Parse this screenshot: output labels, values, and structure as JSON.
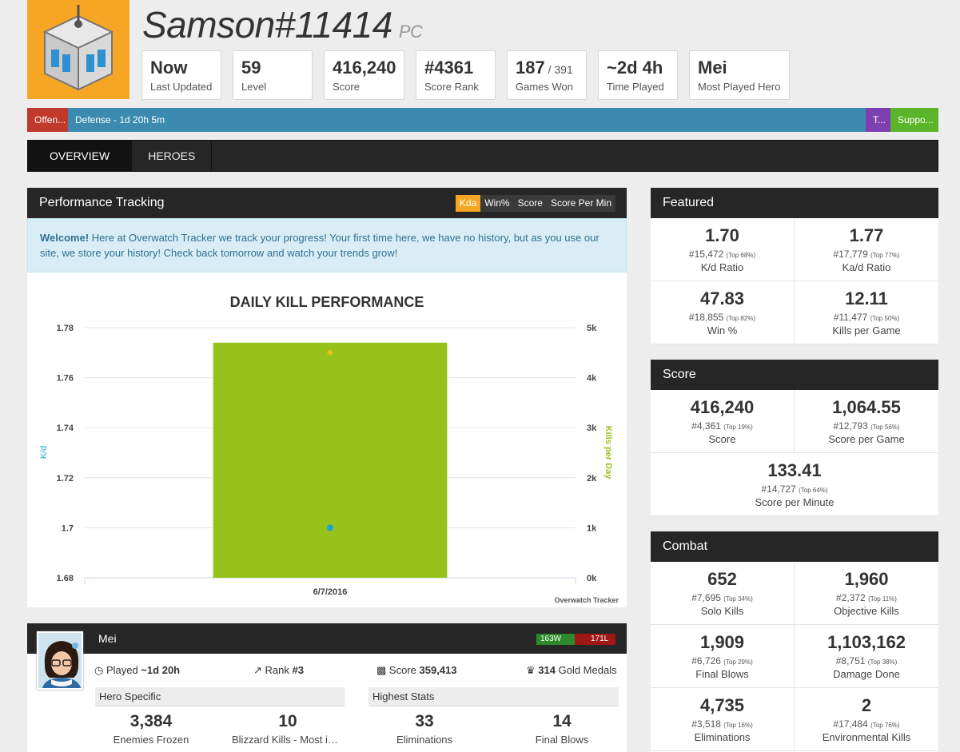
{
  "colors": {
    "accent": "#f6a623",
    "offense": "#c0392b",
    "defense": "#3c8ab0",
    "tank": "#7e3fb0",
    "support": "#5ab52a",
    "chart_bar": "#97c21b",
    "kd_line": "#1fa3d5",
    "win": "#2c8a2c",
    "loss": "#a01717"
  },
  "player": {
    "name": "Samson#11414",
    "platform": "PC",
    "avatar_icon": "loot-box-icon"
  },
  "summary": [
    {
      "value": "Now",
      "suffix": "",
      "label": "Last Updated"
    },
    {
      "value": "59",
      "suffix": "",
      "label": "Level"
    },
    {
      "value": "416,240",
      "suffix": "",
      "label": "Score"
    },
    {
      "value": "#4361",
      "suffix": "",
      "label": "Score Rank"
    },
    {
      "value": "187",
      "suffix": " / 391",
      "label": "Games Won"
    },
    {
      "value": "~2d 4h",
      "suffix": "",
      "label": "Time Played"
    },
    {
      "value": "Mei",
      "suffix": "",
      "label": "Most Played Hero"
    }
  ],
  "roles": [
    {
      "label": "Offen...",
      "share": 0.045,
      "color": "#c0392b"
    },
    {
      "label": "Defense - 1d 20h 5m",
      "share": 0.876,
      "color": "#3c8ab0"
    },
    {
      "label": "T...",
      "share": 0.027,
      "color": "#7e3fb0"
    },
    {
      "label": "Suppo...",
      "share": 0.052,
      "color": "#5ab52a"
    }
  ],
  "tabs": [
    {
      "label": "Overview",
      "active": true
    },
    {
      "label": "Heroes",
      "active": false
    }
  ],
  "performance": {
    "title": "Performance Tracking",
    "buttons": [
      {
        "label": "Kda",
        "active": true
      },
      {
        "label": "Win%",
        "active": false
      },
      {
        "label": "Score",
        "active": false
      },
      {
        "label": "Score Per Min",
        "active": false
      }
    ],
    "alert_strong": "Welcome!",
    "alert_text": " Here at Overwatch Tracker we track your progress! Your first time here, we have no history, but as you use our site, we store your history! Check back tomorrow and watch your trends grow!"
  },
  "chart_data": {
    "type": "bar",
    "title": "DAILY KILL PERFORMANCE",
    "categories": [
      "6/7/2016"
    ],
    "series": [
      {
        "name": "Kills per Day",
        "type": "bar",
        "axis": "right",
        "values": [
          4.7
        ]
      },
      {
        "name": "K/d",
        "type": "line",
        "axis": "left",
        "values": [
          1.7
        ]
      },
      {
        "name": "",
        "type": "point",
        "axis": "right",
        "values": [
          4.5
        ]
      }
    ],
    "ylabel": "K/d",
    "ylabel_right": "Kills per Day",
    "ylim": [
      1.68,
      1.78
    ],
    "yticks": [
      "1.78",
      "1.76",
      "1.74",
      "1.72",
      "1.7",
      "1.68"
    ],
    "ylim_right": [
      0,
      5
    ],
    "yticks_right": [
      "5k",
      "4k",
      "3k",
      "2k",
      "1k",
      "0k"
    ],
    "grid": true,
    "credit": "Overwatch Tracker"
  },
  "featured": {
    "title": "Featured",
    "stats": [
      {
        "value": "1.70",
        "rank": "#15,472",
        "top": "(Top 68%)",
        "name": "K/d Ratio"
      },
      {
        "value": "1.77",
        "rank": "#17,779",
        "top": "(Top 77%)",
        "name": "Ka/d Ratio"
      },
      {
        "value": "47.83",
        "rank": "#18,855",
        "top": "(Top 82%)",
        "name": "Win %"
      },
      {
        "value": "12.11",
        "rank": "#11,477",
        "top": "(Top 50%)",
        "name": "Kills per Game"
      }
    ]
  },
  "score": {
    "title": "Score",
    "stats": [
      {
        "value": "416,240",
        "rank": "#4,361",
        "top": "(Top 19%)",
        "name": "Score"
      },
      {
        "value": "1,064.55",
        "rank": "#12,793",
        "top": "(Top 56%)",
        "name": "Score per Game"
      },
      {
        "value": "133.41",
        "rank": "#14,727",
        "top": "(Top 64%)",
        "name": "Score per Minute"
      }
    ]
  },
  "combat": {
    "title": "Combat",
    "stats": [
      {
        "value": "652",
        "rank": "#7,695",
        "top": "(Top 34%)",
        "name": "Solo Kills"
      },
      {
        "value": "1,960",
        "rank": "#2,372",
        "top": "(Top 11%)",
        "name": "Objective Kills"
      },
      {
        "value": "1,909",
        "rank": "#6,726",
        "top": "(Top 29%)",
        "name": "Final Blows"
      },
      {
        "value": "1,103,162",
        "rank": "#8,751",
        "top": "(Top 38%)",
        "name": "Damage Done"
      },
      {
        "value": "4,735",
        "rank": "#3,518",
        "top": "(Top 16%)",
        "name": "Eliminations"
      },
      {
        "value": "2",
        "rank": "#17,484",
        "top": "(Top 76%)",
        "name": "Environmental Kills"
      }
    ]
  },
  "hero": {
    "name": "Mei",
    "wins": "163W",
    "losses": "171L",
    "played_label": "Played",
    "played_value": "~1d 20h",
    "rank_label": "Rank",
    "rank_value": "#3",
    "score_label": "Score",
    "score_value": "359,413",
    "medals_value": "314",
    "medals_label": "Gold Medals",
    "hero_specific_title": "Hero Specific",
    "highest_stats_title": "Highest Stats",
    "hero_specific": [
      {
        "value": "3,384",
        "name": "Enemies Frozen"
      },
      {
        "value": "10",
        "name": "Blizzard Kills - Most in Game"
      }
    ],
    "highest_stats": [
      {
        "value": "33",
        "name": "Eliminations"
      },
      {
        "value": "14",
        "name": "Final Blows"
      }
    ]
  }
}
